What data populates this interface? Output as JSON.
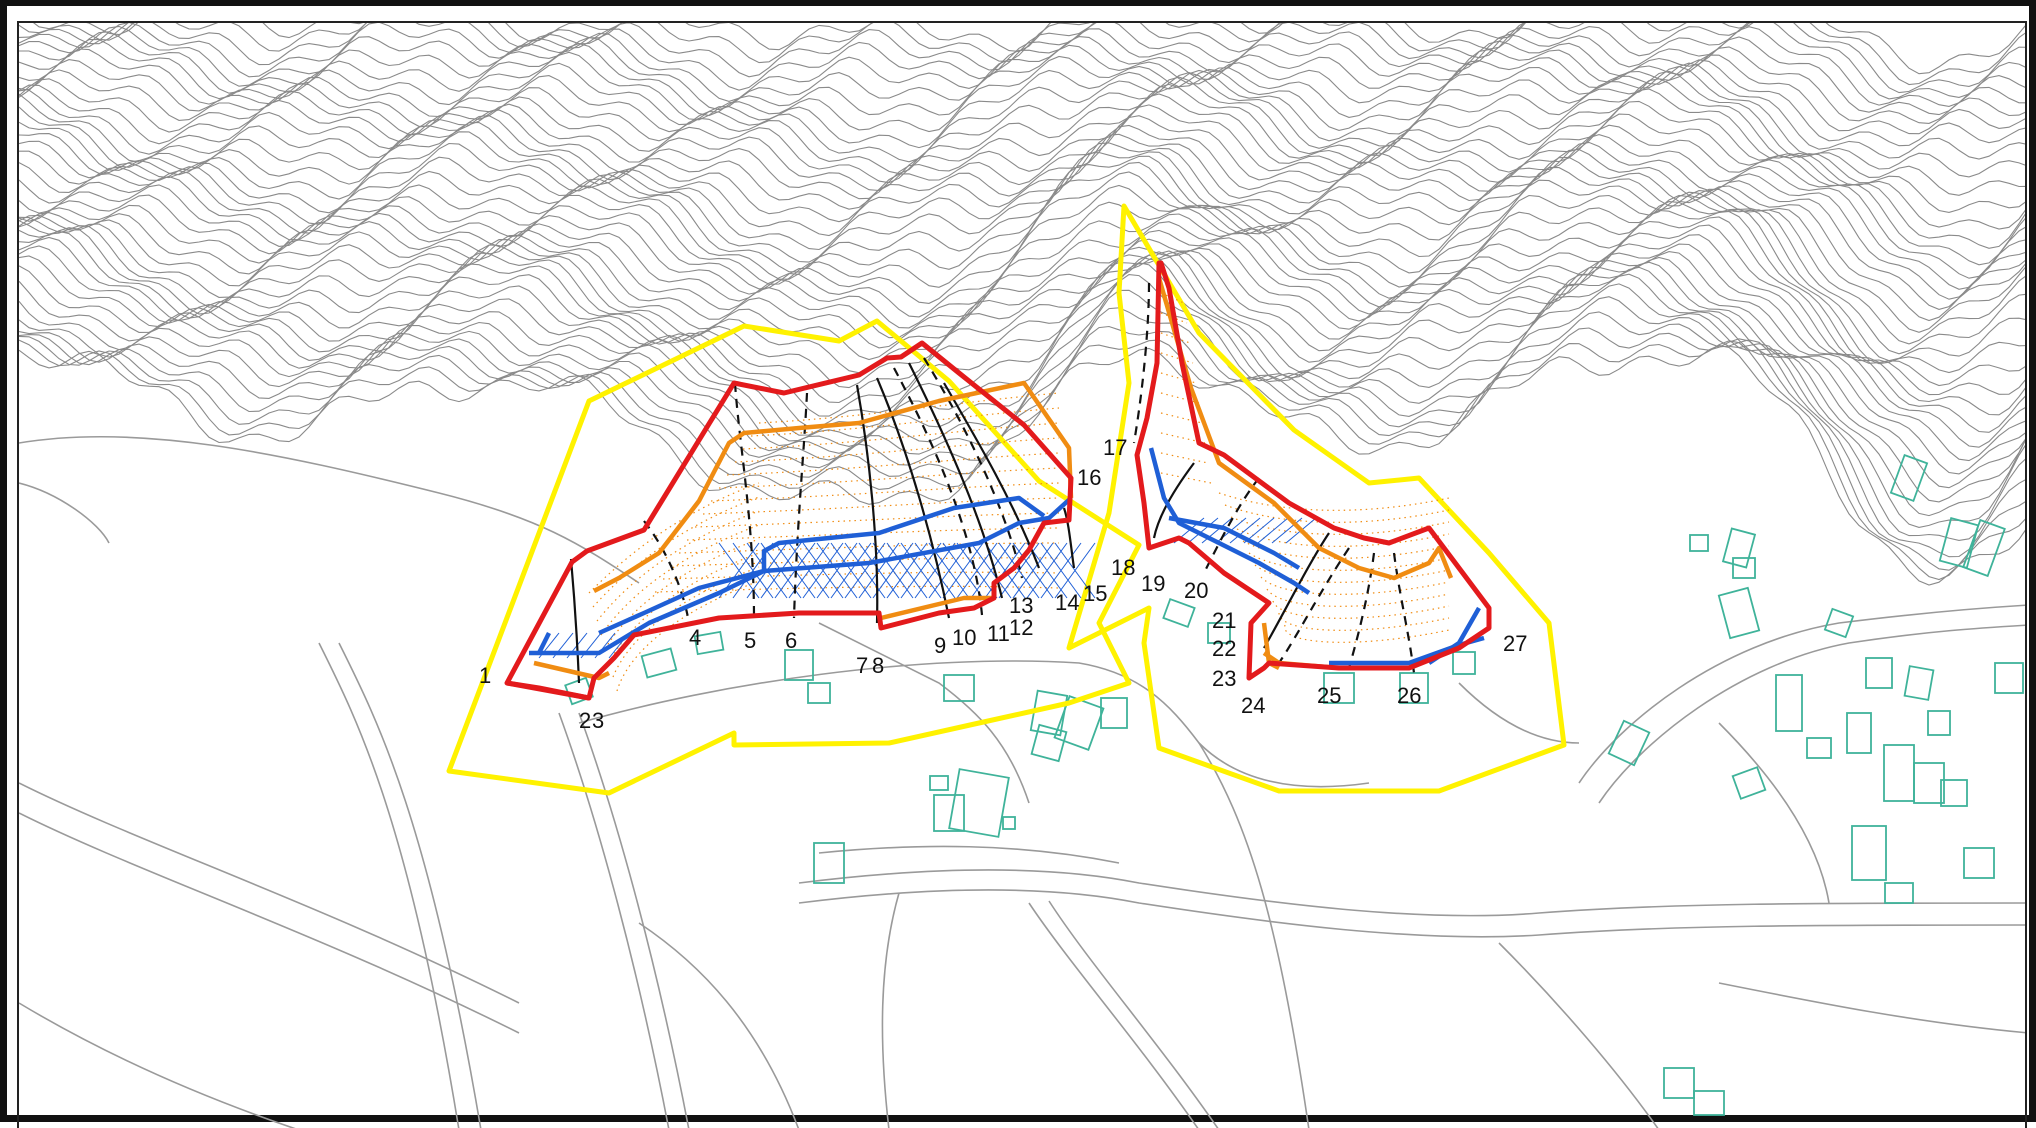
{
  "colors": {
    "contour": "#8a8a8a",
    "road": "#9a9a9a",
    "building": "#3fb39a",
    "zone_boundary_yellow": "#fff200",
    "hazard_red": "#e31a1c",
    "hazard_orange": "#f08c12",
    "hazard_blue": "#1f5fd6",
    "section_line": "#111111"
  },
  "icons": [
    "building-outline-icon"
  ],
  "section_labels": [
    {
      "text": "1"
    },
    {
      "text": "2"
    },
    {
      "text": "3"
    },
    {
      "text": "4"
    },
    {
      "text": "5"
    },
    {
      "text": "6"
    },
    {
      "text": "7"
    },
    {
      "text": "8"
    },
    {
      "text": "9"
    },
    {
      "text": "10"
    },
    {
      "text": "11"
    },
    {
      "text": "12"
    },
    {
      "text": "13"
    },
    {
      "text": "14"
    },
    {
      "text": "15"
    },
    {
      "text": "16"
    },
    {
      "text": "17"
    },
    {
      "text": "18"
    },
    {
      "text": "19"
    },
    {
      "text": "20"
    },
    {
      "text": "21"
    },
    {
      "text": "22"
    },
    {
      "text": "23"
    },
    {
      "text": "24"
    },
    {
      "text": "25"
    },
    {
      "text": "26"
    },
    {
      "text": "27"
    }
  ]
}
